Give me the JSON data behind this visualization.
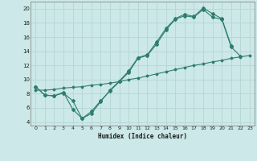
{
  "xlabel": "Humidex (Indice chaleur)",
  "bg_color": "#cce8e8",
  "grid_color": "#b8d8d8",
  "line_color": "#2e7d6e",
  "xlim": [
    -0.5,
    23.5
  ],
  "ylim": [
    3.5,
    21.0
  ],
  "xticks": [
    0,
    1,
    2,
    3,
    4,
    5,
    6,
    7,
    8,
    9,
    10,
    11,
    12,
    13,
    14,
    15,
    16,
    17,
    18,
    19,
    20,
    21,
    22,
    23
  ],
  "yticks": [
    4,
    6,
    8,
    10,
    12,
    14,
    16,
    18,
    20
  ],
  "line1_x": [
    0,
    1,
    2,
    3,
    4,
    5,
    6,
    7,
    8,
    9,
    10,
    11,
    12,
    13,
    14,
    15,
    16,
    17,
    18,
    19,
    20,
    21
  ],
  "line1_y": [
    9.0,
    7.8,
    7.7,
    8.2,
    5.8,
    4.5,
    5.2,
    6.9,
    8.5,
    9.8,
    11.2,
    13.1,
    13.5,
    15.3,
    17.2,
    18.6,
    19.2,
    18.9,
    20.1,
    19.3,
    18.6,
    14.8
  ],
  "line2_x": [
    0,
    1,
    2,
    3,
    4,
    5,
    6,
    7,
    8,
    9,
    10,
    11,
    12,
    13,
    14,
    15,
    16,
    17,
    18,
    19,
    20,
    21,
    22,
    23
  ],
  "line2_y": [
    9.0,
    7.8,
    7.7,
    8.1,
    7.0,
    4.5,
    5.5,
    7.0,
    8.4,
    9.7,
    11.0,
    13.0,
    13.4,
    15.0,
    17.0,
    18.5,
    19.0,
    18.8,
    19.9,
    18.8,
    18.5,
    14.6,
    13.3,
    null
  ],
  "line3_x": [
    0,
    1,
    2,
    3,
    4,
    5,
    6,
    7,
    8,
    9,
    10,
    11,
    12,
    13,
    14,
    15,
    16,
    17,
    18,
    19,
    20,
    21,
    22,
    23
  ],
  "line3_y": [
    8.5,
    8.5,
    8.6,
    8.8,
    8.9,
    9.0,
    9.2,
    9.3,
    9.5,
    9.7,
    10.0,
    10.2,
    10.5,
    10.8,
    11.1,
    11.4,
    11.7,
    12.0,
    12.2,
    12.5,
    12.7,
    13.0,
    13.2,
    13.4
  ]
}
